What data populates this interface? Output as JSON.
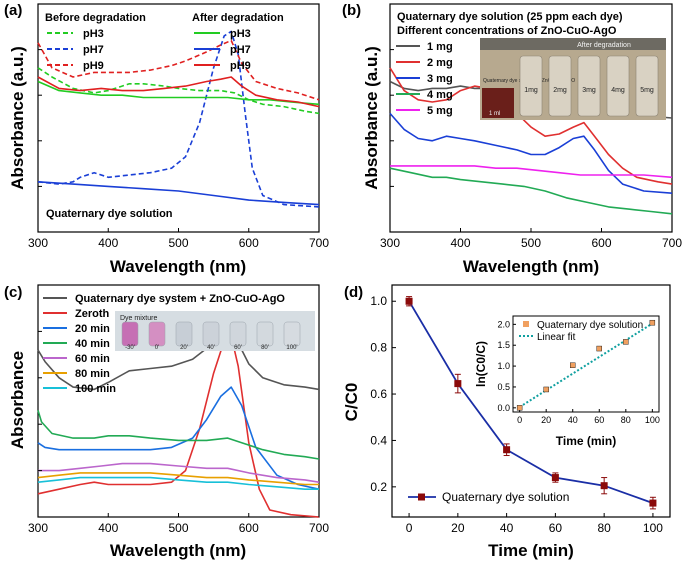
{
  "chart_data": [
    {
      "panel": "(a)",
      "type": "line",
      "xlabel": "Wavelength (nm)",
      "ylabel": "Absorbance (a.u.)",
      "xlim": [
        300,
        700
      ],
      "xticks": [
        300,
        400,
        500,
        600,
        700
      ],
      "ylim": [
        0,
        1
      ],
      "legend_headers": [
        "Before degradation",
        "After degradation"
      ],
      "annotation": "Quaternary dye solution",
      "series": [
        {
          "name": "pH3",
          "group": "before",
          "color": "#22cc22",
          "dash": true,
          "x": [
            300,
            320,
            350,
            380,
            400,
            430,
            450,
            480,
            500,
            530,
            560,
            580,
            600,
            620,
            650,
            680,
            700
          ],
          "y": [
            0.72,
            0.68,
            0.63,
            0.61,
            0.62,
            0.65,
            0.65,
            0.64,
            0.63,
            0.62,
            0.62,
            0.61,
            0.58,
            0.56,
            0.55,
            0.53,
            0.52
          ]
        },
        {
          "name": "pH7",
          "group": "before",
          "color": "#1a3fd6",
          "dash": true,
          "x": [
            300,
            330,
            350,
            360,
            380,
            400,
            430,
            460,
            490,
            510,
            530,
            550,
            565,
            575,
            585,
            595,
            605,
            620,
            650,
            700
          ],
          "y": [
            0.22,
            0.21,
            0.22,
            0.24,
            0.26,
            0.24,
            0.25,
            0.26,
            0.28,
            0.33,
            0.48,
            0.72,
            0.86,
            0.88,
            0.78,
            0.52,
            0.28,
            0.16,
            0.12,
            0.11
          ]
        },
        {
          "name": "pH9",
          "group": "before",
          "color": "#e02020",
          "dash": true,
          "x": [
            300,
            320,
            350,
            380,
            400,
            430,
            460,
            490,
            510,
            540,
            560,
            575,
            590,
            610,
            640,
            670,
            700
          ],
          "y": [
            0.83,
            0.72,
            0.68,
            0.7,
            0.7,
            0.7,
            0.71,
            0.73,
            0.75,
            0.79,
            0.82,
            0.84,
            0.74,
            0.66,
            0.63,
            0.61,
            0.58
          ]
        },
        {
          "name": "pH3",
          "group": "after",
          "color": "#22cc22",
          "dash": false,
          "x": [
            300,
            330,
            360,
            390,
            420,
            450,
            480,
            510,
            540,
            570,
            600,
            630,
            660,
            700
          ],
          "y": [
            0.66,
            0.62,
            0.61,
            0.6,
            0.6,
            0.59,
            0.59,
            0.59,
            0.59,
            0.59,
            0.58,
            0.58,
            0.57,
            0.56
          ]
        },
        {
          "name": "pH7",
          "group": "after",
          "color": "#1a3fd6",
          "dash": false,
          "x": [
            300,
            350,
            400,
            450,
            500,
            550,
            600,
            650,
            700
          ],
          "y": [
            0.22,
            0.21,
            0.2,
            0.19,
            0.18,
            0.16,
            0.14,
            0.13,
            0.12
          ]
        },
        {
          "name": "pH9",
          "group": "after",
          "color": "#e02020",
          "dash": false,
          "x": [
            300,
            330,
            360,
            390,
            420,
            450,
            480,
            510,
            540,
            560,
            575,
            590,
            610,
            640,
            670,
            700
          ],
          "y": [
            0.68,
            0.63,
            0.62,
            0.63,
            0.62,
            0.62,
            0.63,
            0.64,
            0.66,
            0.67,
            0.68,
            0.64,
            0.6,
            0.58,
            0.57,
            0.55
          ]
        }
      ]
    },
    {
      "panel": "(b)",
      "type": "line",
      "xlabel": "Wavelength (nm)",
      "ylabel": "Absorbance (a.u.)",
      "xlim": [
        300,
        700
      ],
      "xticks": [
        300,
        400,
        500,
        600,
        700
      ],
      "ylim": [
        0,
        1
      ],
      "legend_title": [
        "Quaternary dye solution (25 ppm each dye)",
        "Different concentrations of ZnO-CuO-AgO"
      ],
      "photo": {
        "top_label": "After degradation",
        "side_label": "Quaternary dye solution + ZnO-CuO-AgO",
        "volume_label": "1 ml",
        "vials": [
          "1mg",
          "2mg",
          "3mg",
          "4mg",
          "5mg"
        ]
      },
      "series": [
        {
          "name": "1 mg",
          "color": "#555555",
          "x": [
            300,
            320,
            340,
            360,
            380,
            400,
            420,
            440,
            460,
            480,
            500,
            520,
            540,
            560,
            575,
            590,
            610,
            630,
            660,
            700
          ],
          "y": [
            0.66,
            0.63,
            0.62,
            0.63,
            0.63,
            0.64,
            0.63,
            0.63,
            0.62,
            0.61,
            0.6,
            0.58,
            0.57,
            0.58,
            0.58,
            0.56,
            0.55,
            0.53,
            0.51,
            0.5
          ]
        },
        {
          "name": "2 mg",
          "color": "#e03030",
          "x": [
            300,
            320,
            340,
            360,
            380,
            400,
            420,
            440,
            460,
            480,
            500,
            520,
            540,
            560,
            575,
            590,
            610,
            630,
            650,
            680,
            700
          ],
          "y": [
            0.72,
            0.62,
            0.58,
            0.57,
            0.58,
            0.62,
            0.64,
            0.63,
            0.58,
            0.52,
            0.46,
            0.42,
            0.43,
            0.46,
            0.48,
            0.42,
            0.34,
            0.28,
            0.24,
            0.22,
            0.21
          ]
        },
        {
          "name": "3 mg",
          "color": "#1a3fd6",
          "x": [
            300,
            320,
            340,
            360,
            380,
            400,
            420,
            450,
            480,
            500,
            520,
            540,
            560,
            575,
            590,
            610,
            630,
            660,
            700
          ],
          "y": [
            0.52,
            0.45,
            0.41,
            0.4,
            0.42,
            0.41,
            0.4,
            0.38,
            0.36,
            0.34,
            0.34,
            0.37,
            0.41,
            0.42,
            0.36,
            0.27,
            0.21,
            0.18,
            0.17
          ]
        },
        {
          "name": "4 mg",
          "color": "#22aa55",
          "x": [
            300,
            330,
            360,
            380,
            400,
            430,
            460,
            490,
            520,
            550,
            580,
            610,
            640,
            670,
            700
          ],
          "y": [
            0.28,
            0.26,
            0.24,
            0.24,
            0.23,
            0.22,
            0.21,
            0.2,
            0.18,
            0.15,
            0.13,
            0.11,
            0.1,
            0.09,
            0.08
          ]
        },
        {
          "name": "5 mg",
          "color": "#ee22ee",
          "x": [
            300,
            330,
            360,
            390,
            420,
            450,
            480,
            510,
            540,
            570,
            600,
            630,
            660,
            700
          ],
          "y": [
            0.29,
            0.29,
            0.29,
            0.29,
            0.29,
            0.28,
            0.28,
            0.27,
            0.26,
            0.25,
            0.25,
            0.25,
            0.25,
            0.24
          ]
        }
      ]
    },
    {
      "panel": "(c)",
      "type": "line",
      "xlabel": "Wavelength (nm)",
      "ylabel": "Absorbance",
      "xlim": [
        300,
        700
      ],
      "xticks": [
        300,
        400,
        500,
        600,
        700
      ],
      "ylim": [
        0,
        1
      ],
      "photo": {
        "title": "Dye mixture",
        "times": [
          "-30'",
          "0'",
          "20'",
          "40'",
          "60'",
          "80'",
          "100'"
        ]
      },
      "series": [
        {
          "name": "Quaternary dye system + ZnO-CuO-AgO",
          "color": "#555555",
          "x": [
            300,
            310,
            330,
            350,
            380,
            400,
            430,
            460,
            490,
            520,
            550,
            570,
            580,
            600,
            620,
            650,
            680,
            700
          ],
          "y": [
            0.72,
            0.67,
            0.6,
            0.56,
            0.55,
            0.58,
            0.63,
            0.64,
            0.65,
            0.68,
            0.75,
            0.8,
            0.78,
            0.66,
            0.6,
            0.57,
            0.56,
            0.55
          ]
        },
        {
          "name": "Zeroth",
          "color": "#e03030",
          "x": [
            300,
            330,
            360,
            380,
            400,
            430,
            460,
            490,
            510,
            530,
            550,
            565,
            575,
            585,
            600,
            615,
            630,
            660,
            700
          ],
          "y": [
            0.1,
            0.12,
            0.14,
            0.15,
            0.14,
            0.14,
            0.14,
            0.15,
            0.2,
            0.38,
            0.62,
            0.76,
            0.78,
            0.65,
            0.32,
            0.12,
            0.03,
            0.01,
            0.0
          ]
        },
        {
          "name": "20 min",
          "color": "#1a6fe0",
          "x": [
            300,
            310,
            330,
            360,
            380,
            400,
            430,
            460,
            490,
            520,
            540,
            560,
            575,
            590,
            610,
            640,
            670,
            700
          ],
          "y": [
            0.32,
            0.3,
            0.29,
            0.29,
            0.29,
            0.29,
            0.29,
            0.29,
            0.3,
            0.34,
            0.42,
            0.52,
            0.56,
            0.48,
            0.3,
            0.18,
            0.14,
            0.12
          ]
        },
        {
          "name": "40 min",
          "color": "#22aa55",
          "x": [
            300,
            305,
            320,
            350,
            380,
            400,
            430,
            460,
            500,
            540,
            570,
            590,
            620,
            650,
            680,
            700
          ],
          "y": [
            0.46,
            0.41,
            0.36,
            0.34,
            0.34,
            0.35,
            0.35,
            0.34,
            0.33,
            0.33,
            0.34,
            0.32,
            0.29,
            0.27,
            0.26,
            0.25
          ]
        },
        {
          "name": "60 min",
          "color": "#bb66cc",
          "x": [
            300,
            330,
            360,
            390,
            420,
            460,
            500,
            540,
            570,
            600,
            640,
            680,
            700
          ],
          "y": [
            0.2,
            0.2,
            0.21,
            0.22,
            0.23,
            0.23,
            0.22,
            0.21,
            0.21,
            0.19,
            0.17,
            0.16,
            0.15
          ]
        },
        {
          "name": "80 min",
          "color": "#e8a000",
          "x": [
            300,
            330,
            360,
            390,
            420,
            460,
            500,
            540,
            570,
            600,
            640,
            680,
            700
          ],
          "y": [
            0.17,
            0.18,
            0.19,
            0.19,
            0.19,
            0.19,
            0.18,
            0.17,
            0.17,
            0.16,
            0.15,
            0.14,
            0.14
          ]
        },
        {
          "name": "100 min",
          "color": "#18c0d8",
          "x": [
            300,
            330,
            360,
            390,
            420,
            460,
            500,
            540,
            570,
            600,
            640,
            680,
            700
          ],
          "y": [
            0.15,
            0.16,
            0.17,
            0.17,
            0.17,
            0.17,
            0.16,
            0.15,
            0.15,
            0.14,
            0.13,
            0.12,
            0.12
          ]
        }
      ]
    },
    {
      "panel": "(d)",
      "type": "line",
      "xlabel": "Time (min)",
      "ylabel": "C/C0",
      "xlim": [
        -7,
        107
      ],
      "xticks": [
        0,
        20,
        40,
        60,
        80,
        100
      ],
      "ylim": [
        0.07,
        1.07
      ],
      "yticks": [
        "0.2",
        "0.4",
        "0.6",
        "0.8",
        "1.0"
      ],
      "series": [
        {
          "name": "Quaternary dye solution",
          "color": "#1a2ea6",
          "marker_color": "#8b0a0a",
          "x": [
            0,
            20,
            40,
            60,
            80,
            100
          ],
          "y": [
            1.0,
            0.645,
            0.36,
            0.24,
            0.205,
            0.13
          ],
          "err": [
            0.02,
            0.04,
            0.025,
            0.02,
            0.035,
            0.025
          ]
        }
      ],
      "inset": {
        "type": "scatter",
        "xlabel": "Time (min)",
        "ylabel": "ln(C0/C)",
        "xlim": [
          -5,
          105
        ],
        "xticks": [
          0,
          20,
          40,
          60,
          80,
          100
        ],
        "ylim": [
          -0.1,
          2.2
        ],
        "yticks": [
          "0.0",
          "0.5",
          "1.0",
          "1.5",
          "2.0"
        ],
        "series": [
          {
            "name": "Quaternary dye solution",
            "color": "#f0a060",
            "x": [
              0,
              20,
              40,
              60,
              80,
              100
            ],
            "y": [
              0.0,
              0.44,
              1.02,
              1.42,
              1.58,
              2.04
            ],
            "err": [
              0.04,
              0.04,
              0.04,
              0.04,
              0.04,
              0.04
            ]
          },
          {
            "name": "Linear fit",
            "color": "#10a0a0",
            "fit": true,
            "x": [
              0,
              100
            ],
            "y": [
              0.02,
              2.02
            ]
          }
        ]
      }
    }
  ]
}
